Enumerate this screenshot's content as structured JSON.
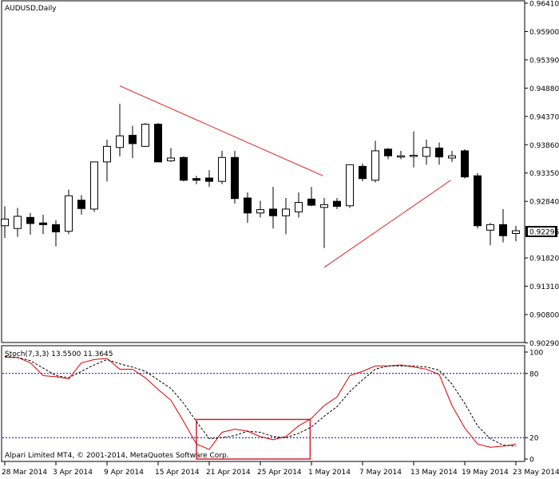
{
  "chart_data": [
    {
      "type": "candlestick",
      "title": "AUDUSD,Daily",
      "symbol": "AUDUSD",
      "timeframe": "Daily",
      "colors": {
        "up_body": "#ffffff",
        "down_body": "#000000",
        "wick": "#000000",
        "trendline": "#dd2222"
      },
      "ylim": [
        0.90354,
        0.9641
      ],
      "y_ticks": [
        "0.96410",
        "0.95900",
        "0.95390",
        "0.94880",
        "0.94370",
        "0.93860",
        "0.93350",
        "0.92840",
        "0.92296",
        "0.91820",
        "0.91310",
        "0.90800",
        "0.90290"
      ],
      "current_price_label": "0.92296",
      "x_ticks": [
        "28 Mar 2014",
        "3 Apr 2014",
        "9 Apr 2014",
        "15 Apr 2014",
        "21 Apr 2014",
        "25 Apr 2014",
        "1 May 2014",
        "7 May 2014",
        "13 May 2014",
        "19 May 2014",
        "23 May 2014"
      ],
      "candles": [
        {
          "o": 0.924,
          "h": 0.9275,
          "l": 0.9218,
          "c": 0.9252
        },
        {
          "o": 0.9235,
          "h": 0.9272,
          "l": 0.922,
          "c": 0.9257
        },
        {
          "o": 0.9255,
          "h": 0.9263,
          "l": 0.9224,
          "c": 0.9244
        },
        {
          "o": 0.9245,
          "h": 0.926,
          "l": 0.9225,
          "c": 0.9242
        },
        {
          "o": 0.9242,
          "h": 0.925,
          "l": 0.9203,
          "c": 0.9229
        },
        {
          "o": 0.923,
          "h": 0.9305,
          "l": 0.9225,
          "c": 0.9294
        },
        {
          "o": 0.9286,
          "h": 0.9295,
          "l": 0.926,
          "c": 0.9271
        },
        {
          "o": 0.927,
          "h": 0.9355,
          "l": 0.9265,
          "c": 0.9355
        },
        {
          "o": 0.9355,
          "h": 0.9395,
          "l": 0.932,
          "c": 0.9383
        },
        {
          "o": 0.9381,
          "h": 0.946,
          "l": 0.9365,
          "c": 0.9402
        },
        {
          "o": 0.9403,
          "h": 0.942,
          "l": 0.9362,
          "c": 0.9388
        },
        {
          "o": 0.9383,
          "h": 0.9425,
          "l": 0.9382,
          "c": 0.9423
        },
        {
          "o": 0.9423,
          "h": 0.9425,
          "l": 0.936,
          "c": 0.9355
        },
        {
          "o": 0.9357,
          "h": 0.938,
          "l": 0.9355,
          "c": 0.9362
        },
        {
          "o": 0.9363,
          "h": 0.9365,
          "l": 0.932,
          "c": 0.9322
        },
        {
          "o": 0.9325,
          "h": 0.933,
          "l": 0.9315,
          "c": 0.9322
        },
        {
          "o": 0.9326,
          "h": 0.934,
          "l": 0.931,
          "c": 0.932
        },
        {
          "o": 0.932,
          "h": 0.9375,
          "l": 0.9315,
          "c": 0.9363
        },
        {
          "o": 0.9363,
          "h": 0.9375,
          "l": 0.928,
          "c": 0.9289
        },
        {
          "o": 0.929,
          "h": 0.93,
          "l": 0.9245,
          "c": 0.9263
        },
        {
          "o": 0.9263,
          "h": 0.9285,
          "l": 0.9255,
          "c": 0.9269
        },
        {
          "o": 0.927,
          "h": 0.931,
          "l": 0.9235,
          "c": 0.9258
        },
        {
          "o": 0.9258,
          "h": 0.929,
          "l": 0.9225,
          "c": 0.927
        },
        {
          "o": 0.9265,
          "h": 0.93,
          "l": 0.9255,
          "c": 0.9282
        },
        {
          "o": 0.9288,
          "h": 0.931,
          "l": 0.9275,
          "c": 0.9277
        },
        {
          "o": 0.9273,
          "h": 0.929,
          "l": 0.92,
          "c": 0.9278
        },
        {
          "o": 0.9284,
          "h": 0.929,
          "l": 0.927,
          "c": 0.9275
        },
        {
          "o": 0.9276,
          "h": 0.935,
          "l": 0.9272,
          "c": 0.935
        },
        {
          "o": 0.9347,
          "h": 0.9352,
          "l": 0.932,
          "c": 0.9325
        },
        {
          "o": 0.9322,
          "h": 0.9393,
          "l": 0.9318,
          "c": 0.9375
        },
        {
          "o": 0.9378,
          "h": 0.938,
          "l": 0.936,
          "c": 0.9366
        },
        {
          "o": 0.9366,
          "h": 0.9375,
          "l": 0.936,
          "c": 0.9366
        },
        {
          "o": 0.9366,
          "h": 0.941,
          "l": 0.9345,
          "c": 0.9367
        },
        {
          "o": 0.9365,
          "h": 0.9395,
          "l": 0.935,
          "c": 0.9381
        },
        {
          "o": 0.938,
          "h": 0.939,
          "l": 0.935,
          "c": 0.9364
        },
        {
          "o": 0.9362,
          "h": 0.9375,
          "l": 0.9355,
          "c": 0.9366
        },
        {
          "o": 0.9375,
          "h": 0.9378,
          "l": 0.9325,
          "c": 0.9328
        },
        {
          "o": 0.933,
          "h": 0.9335,
          "l": 0.9235,
          "c": 0.924
        },
        {
          "o": 0.9232,
          "h": 0.9245,
          "l": 0.9205,
          "c": 0.9242
        },
        {
          "o": 0.9242,
          "h": 0.927,
          "l": 0.921,
          "c": 0.9222
        },
        {
          "o": 0.9226,
          "h": 0.924,
          "l": 0.9212,
          "c": 0.9231
        }
      ],
      "trendlines": [
        {
          "x1": 9.0,
          "y1": 0.9492,
          "x2": 24.9,
          "y2": 0.933
        },
        {
          "x1": 25.0,
          "y1": 0.9165,
          "x2": 34.9,
          "y2": 0.9322
        }
      ]
    },
    {
      "type": "line",
      "title": "Stoch(7,3,3) 13.5500 11.3645",
      "ylim": [
        0,
        100
      ],
      "y_ticks": [
        "100",
        "80",
        "20",
        "0"
      ],
      "levels": [
        80,
        20
      ],
      "colors": {
        "main": "#dd0000",
        "signal": "#000000",
        "level": "#0000aa",
        "highlight_box": "#cc2233"
      },
      "series": [
        {
          "style": "solid",
          "values": [
            95,
            95,
            90,
            78,
            77,
            75,
            90,
            93,
            94,
            84,
            84,
            76,
            65,
            55,
            35,
            14,
            9,
            25,
            28,
            26,
            21,
            18,
            21,
            31,
            38,
            50,
            58,
            78,
            82,
            87,
            87,
            88,
            86,
            84,
            79,
            50,
            29,
            14,
            11,
            12,
            14
          ]
        },
        {
          "style": "dashed",
          "values": [
            96,
            95,
            92,
            85,
            78,
            76,
            82,
            88,
            93,
            89,
            86,
            82,
            74,
            66,
            52,
            35,
            19,
            20,
            22,
            26,
            25,
            21,
            20,
            24,
            30,
            40,
            49,
            63,
            74,
            84,
            87,
            87,
            87,
            86,
            83,
            70,
            52,
            31,
            19,
            13,
            12
          ]
        }
      ],
      "highlight_range": {
        "x_start": 15.0,
        "x_end": 23.9,
        "y_top": 37,
        "y_bottom": 0
      }
    }
  ],
  "footer_text": "Alpari Limited MT4, © 2001-2014, MetaQuotes Software Corp."
}
